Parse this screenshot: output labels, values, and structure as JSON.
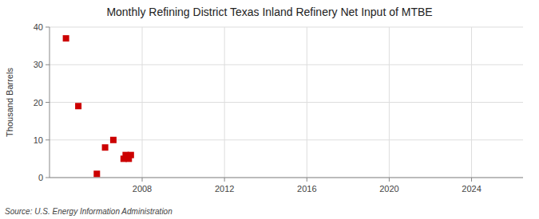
{
  "chart_data": {
    "type": "scatter",
    "title": "Monthly Refining District Texas Inland Refinery Net Input of MTBE",
    "y_label": "Thousand Barrels",
    "annotations": [
      "Source: U.S. Energy Information Administration"
    ],
    "x": [
      2004.3,
      2004.9,
      2005.8,
      2006.2,
      2006.6,
      2007.1,
      2007.2,
      2007.35,
      2007.45
    ],
    "values": [
      37,
      19,
      1,
      8,
      10,
      5,
      6,
      5,
      6
    ],
    "color": "#cc0000",
    "marker": "square",
    "xlim": [
      2003.5,
      2026.5
    ],
    "ylim": [
      0,
      40
    ],
    "xticks": [
      2008,
      2012,
      2016,
      2020,
      2024
    ],
    "yticks": [
      0,
      10,
      20,
      30,
      40
    ],
    "grid": true
  }
}
